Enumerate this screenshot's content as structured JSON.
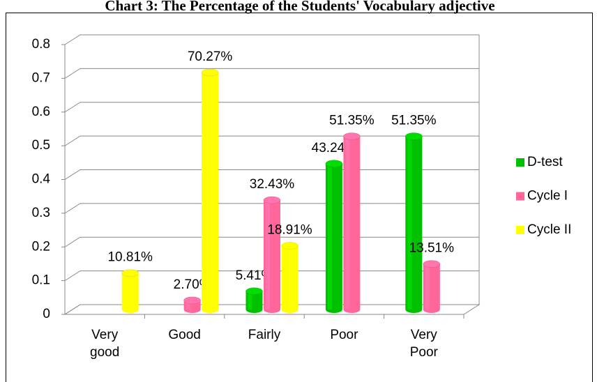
{
  "chart_data": {
    "type": "bar",
    "title": "Chart 3: The Percentage of the Students' Vocabulary adjective",
    "categories": [
      "Very good",
      "Good",
      "Fairly",
      "Poor",
      "Very Poor"
    ],
    "series": [
      {
        "name": "D-test",
        "color": "#00c000",
        "values": [
          null,
          null,
          0.0541,
          0.4324,
          0.5135
        ],
        "value_labels": [
          null,
          null,
          "5.41%",
          "43.24%",
          "51.35%"
        ]
      },
      {
        "name": "Cycle I",
        "color": "#ff6699",
        "values": [
          null,
          0.027,
          0.3243,
          0.5135,
          0.1351
        ],
        "value_labels": [
          null,
          "2.70%",
          "32.43%",
          "51.35%",
          "13.51%"
        ]
      },
      {
        "name": "Cycle II",
        "color": "#ffff00",
        "values": [
          0.1081,
          0.7027,
          0.1891,
          null,
          null
        ],
        "value_labels": [
          "10.81%",
          "70.27%",
          "18.91%",
          null,
          null
        ]
      }
    ],
    "ylim": [
      0,
      0.8
    ],
    "yticks": [
      0,
      0.1,
      0.2,
      0.3,
      0.4,
      0.5,
      0.6,
      0.7,
      0.8
    ],
    "grid": true,
    "legend": "right"
  }
}
